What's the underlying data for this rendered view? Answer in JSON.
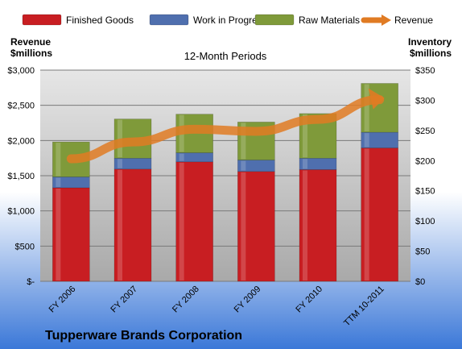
{
  "chart_data": {
    "type": "bar",
    "subtitle": "12-Month Periods",
    "company": "Tupperware Brands Corporation",
    "categories": [
      "FY 2006",
      "FY 2007",
      "FY 2008",
      "FY 2009",
      "FY 2010",
      "TTM 10-2011"
    ],
    "left_axis": {
      "label_line1": "Revenue",
      "label_line2": "$millions",
      "ylim": [
        0,
        3000
      ],
      "ticks": [
        "$-",
        "$500",
        "$1,000",
        "$1,500",
        "$2,000",
        "$2,500",
        "$3,000"
      ]
    },
    "right_axis": {
      "label_line1": "Inventory",
      "label_line2": "$millions",
      "ylim": [
        0,
        350
      ],
      "ticks": [
        "$0",
        "$50",
        "$100",
        "$150",
        "$200",
        "$250",
        "$300",
        "$350"
      ]
    },
    "series": [
      {
        "name": "Finished Goods",
        "axis": "right",
        "color": "#c81e22",
        "values": [
          155,
          186,
          198,
          182,
          185,
          221
        ]
      },
      {
        "name": "Work in Progress",
        "axis": "right",
        "color": "#4f6fae",
        "values": [
          18,
          18,
          15,
          19,
          19,
          26
        ]
      },
      {
        "name": "Raw Materials",
        "axis": "right",
        "color": "#7f9a3a",
        "values": [
          58,
          65,
          64,
          63,
          74,
          81
        ]
      },
      {
        "name": "Revenue",
        "axis": "left",
        "type": "line",
        "color": "#e07b23",
        "values": [
          1740,
          1980,
          2160,
          2130,
          2300,
          2580
        ]
      }
    ],
    "grid": true,
    "legend": "top"
  }
}
